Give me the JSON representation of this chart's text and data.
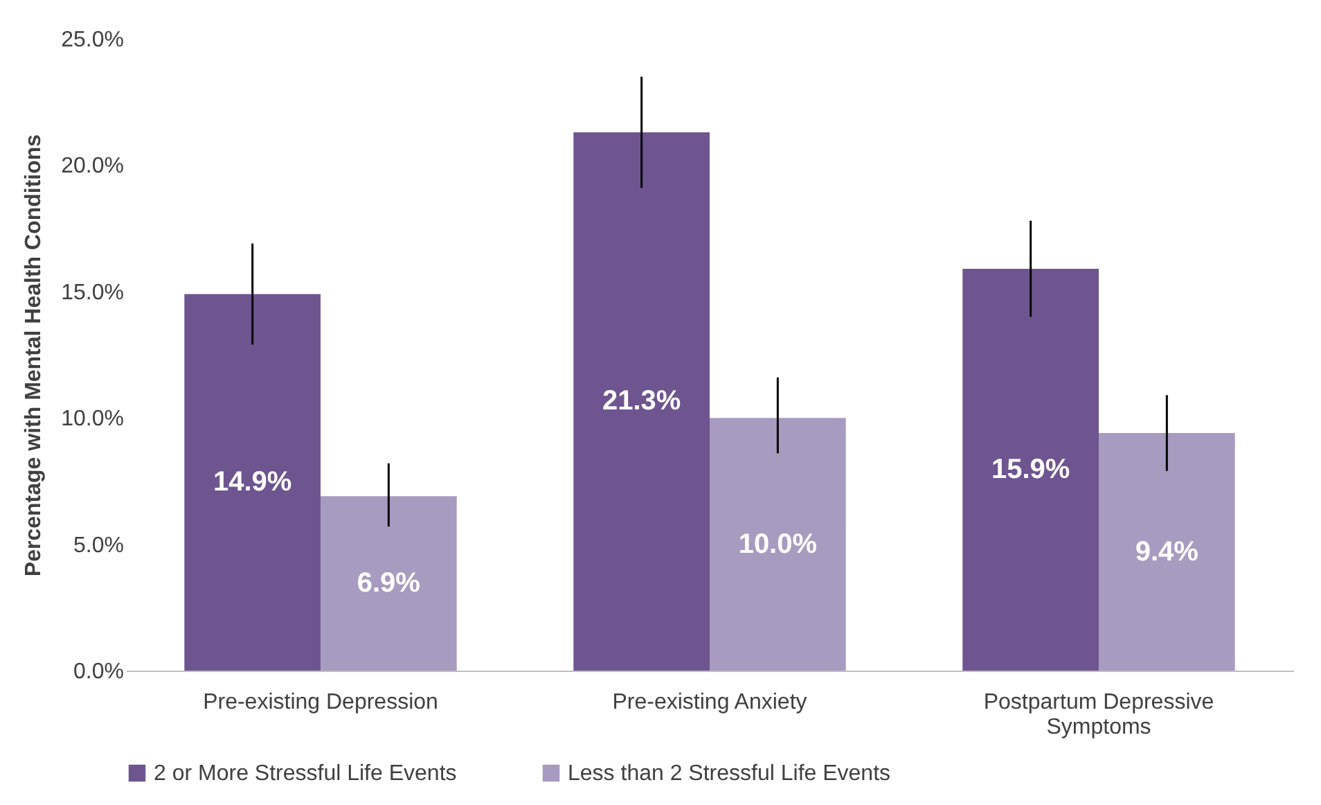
{
  "chart_data": {
    "type": "bar",
    "ylabel": "Percentage with Mental Health Conditions",
    "categories": [
      "Pre-existing Depression",
      "Pre-existing Anxiety",
      "Postpartum Depressive Symptoms"
    ],
    "series": [
      {
        "name": "2 or More Stressful Life Events",
        "color": "#6e5590",
        "values": [
          14.9,
          21.3,
          15.9
        ],
        "errors": [
          [
            12.9,
            16.9
          ],
          [
            19.1,
            23.5
          ],
          [
            14.0,
            17.8
          ]
        ],
        "value_labels": [
          "14.9%",
          "21.3%",
          "15.9%"
        ]
      },
      {
        "name": "Less than 2 Stressful Life Events",
        "color": "#a89bc0",
        "values": [
          6.9,
          10.0,
          9.4
        ],
        "errors": [
          [
            5.7,
            8.2
          ],
          [
            8.6,
            11.6
          ],
          [
            7.9,
            10.9
          ]
        ],
        "value_labels": [
          "6.9%",
          "10.0%",
          "9.4%"
        ]
      }
    ],
    "ylim": [
      0,
      25
    ],
    "yticks": [
      {
        "value": 0,
        "label": "0.0%"
      },
      {
        "value": 5,
        "label": "5.0%"
      },
      {
        "value": 10,
        "label": "10.0%"
      },
      {
        "value": 15,
        "label": "15.0%"
      },
      {
        "value": 20,
        "label": "20.0%"
      },
      {
        "value": 25,
        "label": "25.0%"
      }
    ],
    "grid": false,
    "legend": "bottom"
  }
}
